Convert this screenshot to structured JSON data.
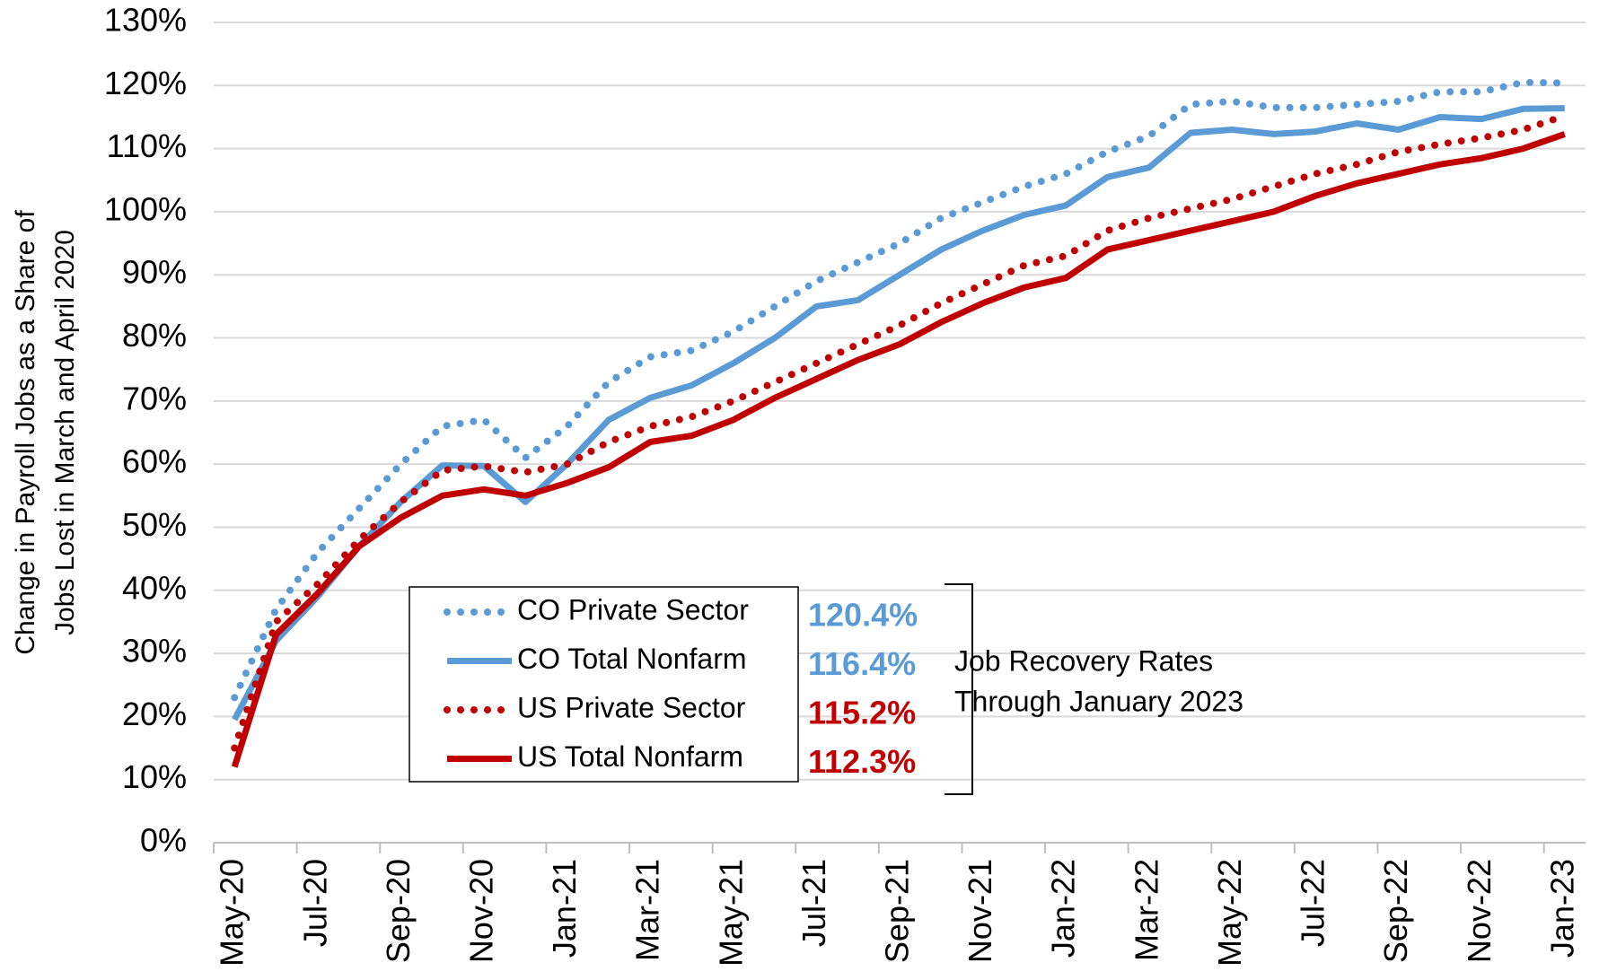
{
  "chart_data": {
    "type": "line",
    "ylabel": [
      "Change in Payroll Jobs as a Share of",
      "Jobs Lost in March and April 2020"
    ],
    "categories": [
      "May-20",
      null,
      "Jul-20",
      null,
      "Sep-20",
      null,
      "Nov-20",
      null,
      "Jan-21",
      null,
      "Mar-21",
      null,
      "May-21",
      null,
      "Jul-21",
      null,
      "Sep-21",
      null,
      "Nov-21",
      null,
      "Jan-22",
      null,
      "Mar-22",
      null,
      "May-22",
      null,
      "Jul-22",
      null,
      "Sep-22",
      null,
      "Nov-22",
      null,
      "Jan-23"
    ],
    "ylim": [
      0,
      130
    ],
    "yticks": [
      {
        "value": 0,
        "label": "0%"
      },
      {
        "value": 10,
        "label": "10%"
      },
      {
        "value": 20,
        "label": "20%"
      },
      {
        "value": 30,
        "label": "30%"
      },
      {
        "value": 40,
        "label": "40%"
      },
      {
        "value": 50,
        "label": "50%"
      },
      {
        "value": 60,
        "label": "60%"
      },
      {
        "value": 70,
        "label": "70%"
      },
      {
        "value": 80,
        "label": "80%"
      },
      {
        "value": 90,
        "label": "90%"
      },
      {
        "value": 100,
        "label": "100%"
      },
      {
        "value": 110,
        "label": "110%"
      },
      {
        "value": 120,
        "label": "120%"
      },
      {
        "value": 130,
        "label": "130%"
      }
    ],
    "grid": true,
    "series": [
      {
        "name": "CO Private Sector",
        "color": "#5b9bd5",
        "style": "dotted",
        "values": [
          23,
          37,
          46,
          53,
          60,
          66,
          67,
          61,
          66,
          73,
          77,
          78,
          81,
          85,
          89,
          92,
          95,
          99,
          101.5,
          104,
          106,
          109.5,
          112,
          117,
          117.5,
          116.5,
          116.5,
          117,
          117.5,
          119,
          119,
          120.5,
          120.4
        ],
        "value_labels": [
          null,
          null,
          null,
          null,
          null,
          null,
          null,
          null,
          null,
          null,
          null,
          null,
          null,
          null,
          null,
          null,
          null,
          null,
          null,
          null,
          null,
          null,
          null,
          null,
          null,
          null,
          null,
          null,
          null,
          null,
          null,
          null,
          "120.4%"
        ]
      },
      {
        "name": "CO Total Nonfarm",
        "color": "#5b9bd5",
        "style": "solid",
        "values": [
          19.5,
          32,
          39,
          47,
          54,
          59.8,
          59.7,
          54,
          60,
          67,
          70.5,
          72.5,
          76,
          80,
          85,
          86,
          90,
          94,
          97,
          99.5,
          101,
          105.5,
          107,
          112.5,
          113,
          112.3,
          112.7,
          114,
          113,
          115,
          114.7,
          116.3,
          116.4
        ],
        "value_labels": [
          null,
          null,
          null,
          null,
          null,
          null,
          null,
          null,
          null,
          null,
          null,
          null,
          null,
          null,
          null,
          null,
          null,
          null,
          null,
          null,
          null,
          null,
          null,
          null,
          null,
          null,
          null,
          null,
          null,
          null,
          null,
          null,
          "116.4%"
        ]
      },
      {
        "name": "US Private Sector",
        "color": "#c00000",
        "style": "dotted",
        "values": [
          15,
          35,
          41,
          48,
          54,
          59,
          59.7,
          58.7,
          60,
          63.5,
          66,
          67.5,
          70,
          73,
          76,
          79,
          82,
          85.5,
          88.5,
          91.5,
          93,
          97,
          99,
          100.5,
          102,
          104,
          106,
          107.5,
          109.5,
          110.7,
          111.7,
          113,
          115.2
        ],
        "value_labels": [
          null,
          null,
          null,
          null,
          null,
          null,
          null,
          null,
          null,
          null,
          null,
          null,
          null,
          null,
          null,
          null,
          null,
          null,
          null,
          null,
          null,
          null,
          null,
          null,
          null,
          null,
          null,
          null,
          null,
          null,
          null,
          null,
          "115.2%"
        ]
      },
      {
        "name": "US Total Nonfarm",
        "color": "#c00000",
        "style": "solid",
        "values": [
          12,
          33,
          39.5,
          47,
          51.5,
          55,
          56,
          55,
          57,
          59.5,
          63.5,
          64.5,
          67,
          70.5,
          73.5,
          76.5,
          79,
          82.5,
          85.5,
          88,
          89.5,
          94,
          95.5,
          97,
          98.5,
          100,
          102.5,
          104.5,
          106,
          107.5,
          108.5,
          110,
          112.3
        ],
        "value_labels": [
          null,
          null,
          null,
          null,
          null,
          null,
          null,
          null,
          null,
          null,
          null,
          null,
          null,
          null,
          null,
          null,
          null,
          null,
          null,
          null,
          null,
          null,
          null,
          null,
          null,
          null,
          null,
          null,
          null,
          null,
          null,
          null,
          "112.3%"
        ]
      }
    ],
    "annotation": [
      "Job Recovery Rates",
      "Through January 2023"
    ]
  }
}
